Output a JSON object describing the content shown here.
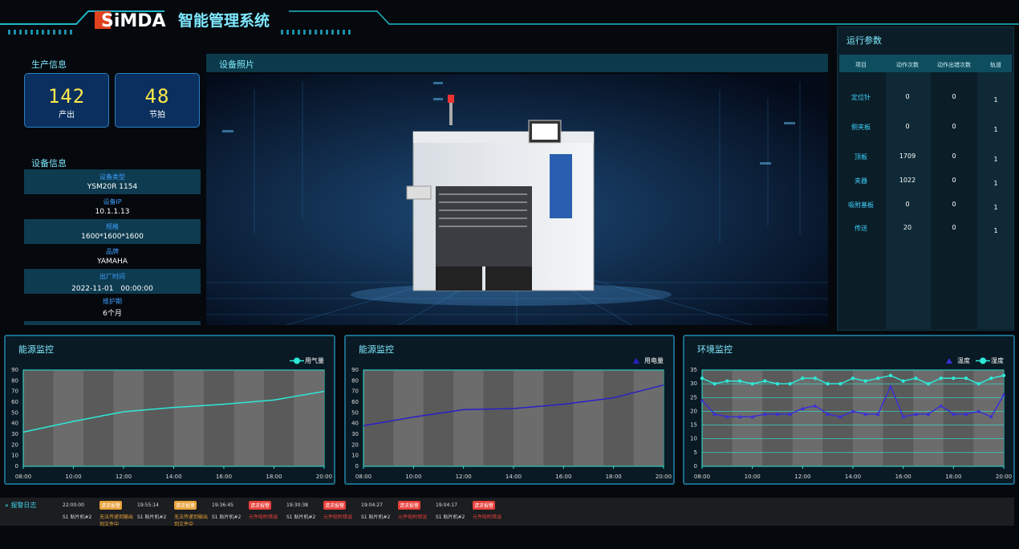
{
  "header": {
    "logo": "SiMDA",
    "title": "智能管理系统"
  },
  "production": {
    "title": "生产信息",
    "cards": [
      {
        "value": 142,
        "label": "产出"
      },
      {
        "value": 48,
        "label": "节拍"
      }
    ]
  },
  "device_info": {
    "title": "设备信息",
    "items": [
      {
        "label": "设备类型",
        "value": "YSM20R 1154"
      },
      {
        "label": "设备IP",
        "value": "10.1.1.13"
      },
      {
        "label": "规格",
        "value": "1600*1600*1600"
      },
      {
        "label": "品牌",
        "value": "YAMAHA"
      },
      {
        "label": "出厂时间",
        "value": "2022-11-01　00:00:00"
      },
      {
        "label": "维护期",
        "value": "6个月"
      }
    ]
  },
  "photo": {
    "title": "设备照片"
  },
  "params": {
    "title": "运行参数",
    "headers": [
      "项目",
      "动作次数",
      "动作出错次数",
      "轨道"
    ],
    "rows": [
      [
        "定位针",
        0,
        0,
        1
      ],
      [
        "侧夹板",
        0,
        0,
        1
      ],
      [
        "顶板",
        1709,
        0,
        1
      ],
      [
        "夹器",
        1022,
        0,
        1
      ],
      [
        "吸附基板",
        0,
        0,
        1
      ],
      [
        "传送",
        20,
        0,
        1
      ]
    ]
  },
  "chart_data": [
    {
      "type": "line",
      "title": "能源监控",
      "x": [
        8,
        10,
        12,
        14,
        16,
        18,
        20
      ],
      "series": [
        {
          "name": "用气量",
          "color": "#2ee8d8",
          "marker": "circle",
          "values": [
            32,
            42,
            51,
            55,
            58,
            62,
            70
          ]
        }
      ],
      "xlim": [
        8,
        20
      ],
      "xticks": [
        {
          "value": 8,
          "label": "08:00"
        },
        {
          "value": 10,
          "label": "10:00"
        },
        {
          "value": 12,
          "label": "12:00"
        },
        {
          "value": 14,
          "label": "14:00"
        },
        {
          "value": 16,
          "label": "16:00"
        },
        {
          "value": 18,
          "label": "18:00"
        },
        {
          "value": 20,
          "label": "20:00"
        }
      ],
      "ylim": [
        0,
        90
      ],
      "yticks": [
        0,
        10,
        20,
        30,
        40,
        50,
        60,
        70,
        80,
        90
      ],
      "grid": false,
      "show_markers": false,
      "legend": "top-right"
    },
    {
      "type": "line",
      "title": "能源监控",
      "x": [
        8,
        10,
        12,
        14,
        16,
        18,
        20
      ],
      "series": [
        {
          "name": "用电量",
          "color": "#2b1fc9",
          "marker": "triangle",
          "values": [
            38,
            46,
            53,
            54,
            58,
            64,
            76
          ]
        }
      ],
      "xlim": [
        8,
        20
      ],
      "xticks": [
        {
          "value": 8,
          "label": "08:00"
        },
        {
          "value": 10,
          "label": "10:00"
        },
        {
          "value": 12,
          "label": "12:00"
        },
        {
          "value": 14,
          "label": "14:00"
        },
        {
          "value": 16,
          "label": "16:00"
        },
        {
          "value": 18,
          "label": "18:00"
        },
        {
          "value": 20,
          "label": "20:00"
        }
      ],
      "ylim": [
        0,
        90
      ],
      "yticks": [
        0,
        10,
        20,
        30,
        40,
        50,
        60,
        70,
        80,
        90
      ],
      "grid": false,
      "show_markers": false,
      "legend": "top-right"
    },
    {
      "type": "line",
      "title": "环境监控",
      "x": [
        8,
        8.5,
        9,
        9.5,
        10,
        10.5,
        11,
        11.5,
        12,
        12.5,
        13,
        13.5,
        14,
        14.5,
        15,
        15.5,
        16,
        16.5,
        17,
        17.5,
        18,
        18.5,
        19,
        19.5,
        20
      ],
      "series": [
        {
          "name": "温度",
          "color": "#3a2fd6",
          "marker": "triangle",
          "values": [
            24,
            19,
            18,
            18,
            18,
            19,
            19,
            19,
            21,
            22,
            19,
            18,
            20,
            19,
            19,
            29,
            18,
            19,
            19,
            22,
            19,
            19,
            20,
            18,
            26
          ]
        },
        {
          "name": "湿度",
          "color": "#2ee8d8",
          "marker": "circle",
          "values": [
            32,
            30,
            31,
            31,
            30,
            31,
            30,
            30,
            32,
            32,
            30,
            30,
            32,
            31,
            32,
            33,
            31,
            32,
            30,
            32,
            32,
            32,
            30,
            32,
            33
          ]
        }
      ],
      "xlim": [
        8,
        20
      ],
      "xticks": [
        {
          "value": 8,
          "label": "08:00"
        },
        {
          "value": 10,
          "label": "10:00"
        },
        {
          "value": 12,
          "label": "12:00"
        },
        {
          "value": 14,
          "label": "14:00"
        },
        {
          "value": 16,
          "label": "16:00"
        },
        {
          "value": 18,
          "label": "18:00"
        },
        {
          "value": 20,
          "label": "20:00"
        }
      ],
      "ylim": [
        0,
        35
      ],
      "yticks": [
        0,
        5,
        10,
        15,
        20,
        25,
        30,
        35
      ],
      "grid": true,
      "show_markers": true,
      "legend": "top-right"
    }
  ],
  "alarm_log": {
    "title": "报警日志",
    "entries": [
      {
        "time": "22:00:00",
        "device": "S1 贴片机#2",
        "tag": "请求报警",
        "level": "warning",
        "message": "无法传递到输出到文件中"
      },
      {
        "time": "19:55:14",
        "device": "S1 贴片机#2",
        "tag": "请求报警",
        "level": "warning",
        "message": "无法传递到输出到文件中"
      },
      {
        "time": "19:36:45",
        "device": "S1 贴片机#2",
        "tag": "请求报警",
        "level": "error",
        "message": "元件吸附错误"
      },
      {
        "time": "19:30:38",
        "device": "S1 贴片机#2",
        "tag": "请求报警",
        "level": "error",
        "message": "元件吸附错误"
      },
      {
        "time": "19:04:27",
        "device": "S1 贴片机#2",
        "tag": "请求报警",
        "level": "error",
        "message": "元件吸附错误"
      },
      {
        "time": "19:04:17",
        "device": "S1 贴片机#2",
        "tag": "请求报警",
        "level": "error",
        "message": "元件吸附错误"
      }
    ]
  }
}
